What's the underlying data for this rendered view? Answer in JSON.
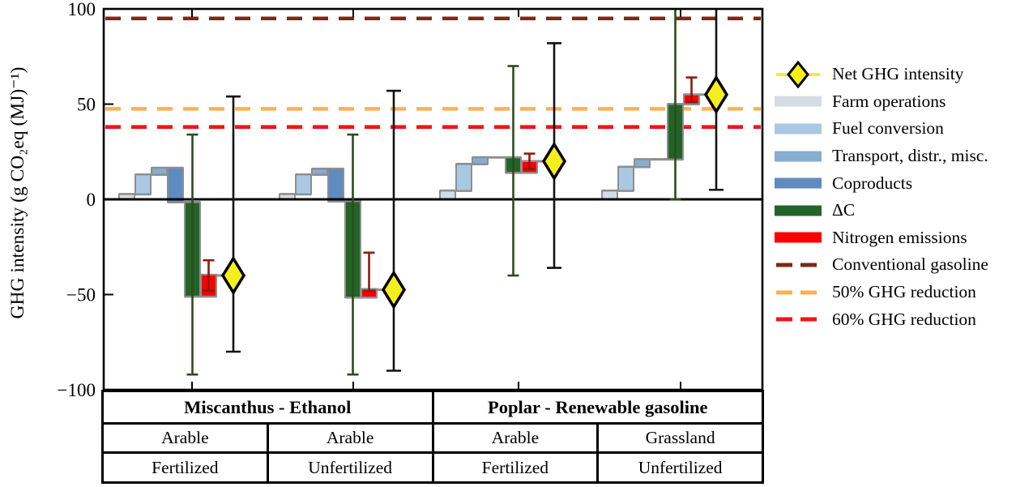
{
  "y_axis": {
    "title": "GHG intensity (g CO₂eq (MJ)⁻¹)",
    "ticks": [
      "100",
      "50",
      "0",
      "−50",
      "−100"
    ],
    "tick_values": [
      100,
      50,
      0,
      -50,
      -100
    ],
    "min": -100,
    "max": 100
  },
  "legend": {
    "items": [
      {
        "label": "Net GHG intensity",
        "marker": "diamond",
        "color": "#f5ee1d"
      },
      {
        "label": "Farm operations",
        "marker": "swatch",
        "color": "#d6dce3"
      },
      {
        "label": "Fuel conversion",
        "marker": "swatch",
        "color": "#abc8e3"
      },
      {
        "label": "Transport, distr., misc.",
        "marker": "swatch",
        "color": "#87add1"
      },
      {
        "label": "Coproducts",
        "marker": "swatch",
        "color": "#5f8bc0"
      },
      {
        "label": "ΔC",
        "marker": "swatch",
        "color": "#226427"
      },
      {
        "label": "Nitrogen emissions",
        "marker": "swatch",
        "color": "#fb0000"
      },
      {
        "label": "Conventional gasoline",
        "marker": "dash",
        "color": "#7e2817"
      },
      {
        "label": "50% GHG reduction",
        "marker": "dash",
        "color": "#f8b05a"
      },
      {
        "label": "60% GHG reduction",
        "marker": "dash",
        "color": "#ee1616"
      }
    ]
  },
  "chart_data": {
    "type": "waterfall",
    "title": "",
    "ylabel": "GHG intensity (g CO2eq (MJ)-1)",
    "ylim": [
      -100,
      100
    ],
    "grid": false,
    "legend_position": "right",
    "series_colors": {
      "farm": "#d6dce3",
      "fuel": "#abc8e3",
      "transport": "#87add1",
      "coproducts": "#5f8bc0",
      "deltaC": "#226427",
      "nitrogen": "#fb0000"
    },
    "error_colors": {
      "deltaC": "#2c4c1c",
      "nitrogen": "#8b1b12",
      "net": "#121212"
    },
    "marker_color": "#f5ee1d",
    "reference_lines": [
      {
        "label": "Conventional gasoline",
        "value": 95,
        "color": "#7e2817"
      },
      {
        "label": "50% GHG reduction",
        "value": 47.5,
        "color": "#f8b05a"
      },
      {
        "label": "60% GHG reduction",
        "value": 38,
        "color": "#ee1616"
      }
    ],
    "groups": [
      {
        "pathway": "Miscanthus - Ethanol",
        "land": "Arable",
        "treatment": "Fertilized",
        "steps": [
          {
            "name": "Farm operations",
            "key": "farm",
            "from": 0,
            "to": 2.7
          },
          {
            "name": "Fuel conversion",
            "key": "fuel",
            "from": 2.7,
            "to": 13
          },
          {
            "name": "Transport, distr., misc.",
            "key": "transport",
            "from": 13,
            "to": 16.5
          },
          {
            "name": "Coproducts",
            "key": "coproducts",
            "from": 16.5,
            "to": -1.5
          },
          {
            "name": "ΔC",
            "key": "deltaC",
            "from": -1.5,
            "to": -51,
            "error_high": 34,
            "error_low": -92
          },
          {
            "name": "Nitrogen emissions",
            "key": "nitrogen",
            "from": -51,
            "to": -39.5,
            "error_high": -32,
            "error_low": -48
          }
        ],
        "net": {
          "value": -40,
          "error_high": 54,
          "error_low": -80
        }
      },
      {
        "pathway": "Miscanthus - Ethanol",
        "land": "Arable",
        "treatment": "Unfertilized",
        "steps": [
          {
            "name": "Farm operations",
            "key": "farm",
            "from": 0,
            "to": 2.7
          },
          {
            "name": "Fuel conversion",
            "key": "fuel",
            "from": 2.7,
            "to": 13
          },
          {
            "name": "Transport, distr., misc.",
            "key": "transport",
            "from": 13,
            "to": 16
          },
          {
            "name": "Coproducts",
            "key": "coproducts",
            "from": 16,
            "to": -1
          },
          {
            "name": "ΔC",
            "key": "deltaC",
            "from": -1,
            "to": -51.5,
            "error_high": 34,
            "error_low": -92
          },
          {
            "name": "Nitrogen emissions",
            "key": "nitrogen",
            "from": -51.5,
            "to": -47,
            "error_high": -28,
            "error_low": -48
          }
        ],
        "net": {
          "value": -47.5,
          "error_high": 57,
          "error_low": -90
        }
      },
      {
        "pathway": "Poplar - Renewable gasoline",
        "land": "Arable",
        "treatment": "Fertilized",
        "steps": [
          {
            "name": "Farm operations",
            "key": "farm",
            "from": 0,
            "to": 4.5
          },
          {
            "name": "Fuel conversion",
            "key": "fuel",
            "from": 4.5,
            "to": 18.5
          },
          {
            "name": "Transport, distr., misc.",
            "key": "transport",
            "from": 18.5,
            "to": 22
          },
          {
            "name": "ΔC",
            "key": "deltaC",
            "from": 22,
            "to": 14,
            "error_high": 70,
            "error_low": -40
          },
          {
            "name": "Nitrogen emissions",
            "key": "nitrogen",
            "from": 14,
            "to": 20,
            "error_high": 24,
            "error_low": 16
          }
        ],
        "net": {
          "value": 20,
          "error_high": 82,
          "error_low": -36
        }
      },
      {
        "pathway": "Poplar - Renewable gasoline",
        "land": "Grassland",
        "treatment": "Unfertilized",
        "steps": [
          {
            "name": "Farm operations",
            "key": "farm",
            "from": 0,
            "to": 4.5
          },
          {
            "name": "Fuel conversion",
            "key": "fuel",
            "from": 4.5,
            "to": 17
          },
          {
            "name": "Transport, distr., misc.",
            "key": "transport",
            "from": 17,
            "to": 21
          },
          {
            "name": "ΔC",
            "key": "deltaC",
            "from": 21,
            "to": 50,
            "error_high": 100,
            "error_low": 0,
            "clipped_high": true
          },
          {
            "name": "Nitrogen emissions",
            "key": "nitrogen",
            "from": 50,
            "to": 55,
            "error_high": 64,
            "error_low": 51
          }
        ],
        "net": {
          "value": 55,
          "error_high": 100,
          "error_low": 5,
          "clipped_high": true
        }
      }
    ]
  },
  "table": {
    "pathway_row": [
      "Miscanthus - Ethanol",
      "Poplar - Renewable gasoline"
    ],
    "land_row": [
      "Arable",
      "Arable",
      "Arable",
      "Grassland"
    ],
    "treatment_row": [
      "Fertilized",
      "Unfertilized",
      "Fertilized",
      "Unfertilized"
    ]
  }
}
